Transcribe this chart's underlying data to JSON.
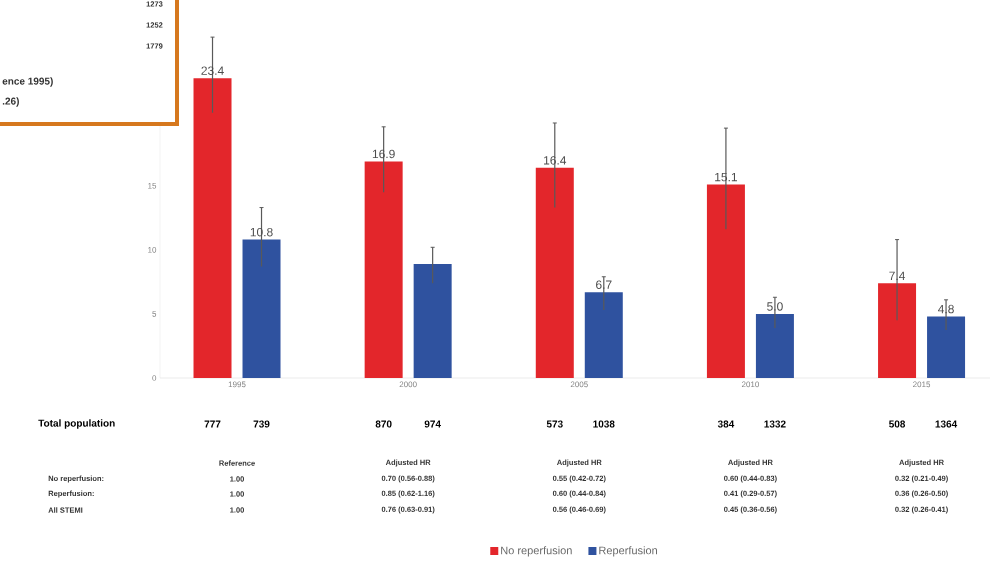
{
  "chart_data": {
    "type": "bar",
    "categories": [
      "1995",
      "2000",
      "2005",
      "2010",
      "2015"
    ],
    "series": [
      {
        "name": "No reperfusion",
        "color": "#e3262b",
        "values": [
          23.4,
          16.9,
          16.4,
          15.1,
          7.4
        ],
        "errors": [
          [
            20.7,
            26.6
          ],
          [
            14.5,
            19.6
          ],
          [
            13.3,
            19.9
          ],
          [
            11.6,
            19.5
          ],
          [
            4.5,
            10.8
          ]
        ],
        "value_labels": [
          "23.4",
          "16.9",
          "16.4",
          "15.1",
          "7.4"
        ]
      },
      {
        "name": "Reperfusion",
        "color": "#2f529f",
        "values": [
          10.8,
          8.9,
          6.7,
          5.0,
          4.8
        ],
        "errors": [
          [
            8.7,
            13.3
          ],
          [
            7.4,
            10.2
          ],
          [
            5.3,
            7.9
          ],
          [
            3.9,
            6.3
          ],
          [
            3.75,
            6.1
          ]
        ],
        "value_labels": [
          "10.8",
          null,
          "6.7",
          "5.0",
          "4.8"
        ]
      }
    ],
    "ylim": [
      0,
      27
    ],
    "yticks": [
      0,
      5,
      10,
      15
    ],
    "legend": "bottom",
    "annotations": [
      "Total population",
      "777",
      "739",
      "870",
      "974",
      "573",
      "1038",
      "384",
      "1332",
      "508",
      "1364",
      "No reperfusion:",
      "Reperfusion:",
      "All STEMI",
      "Reference",
      "1.00",
      "1.00",
      "1.00",
      "Adjusted HR",
      "0.70 (0.56-0.88)",
      "0.85 (0.62-1.16)",
      "0.76 (0.63-0.91)",
      "Adjusted HR",
      "0.55 (0.42-0.72)",
      "0.60 (0.44-0.84)",
      "0.56 (0.46-0.69)",
      "Adjusted HR",
      "0.60 (0.44-0.83)",
      "0.41 (0.29-0.57)",
      "0.45 (0.36-0.56)",
      "Adjusted HR",
      "0.32 (0.21-0.49)",
      "0.36 (0.26-0.50)",
      "0.32 (0.26-0.41)",
      "1273",
      "1252",
      "1779",
      "ence 1995)",
      ".26)"
    ]
  }
}
